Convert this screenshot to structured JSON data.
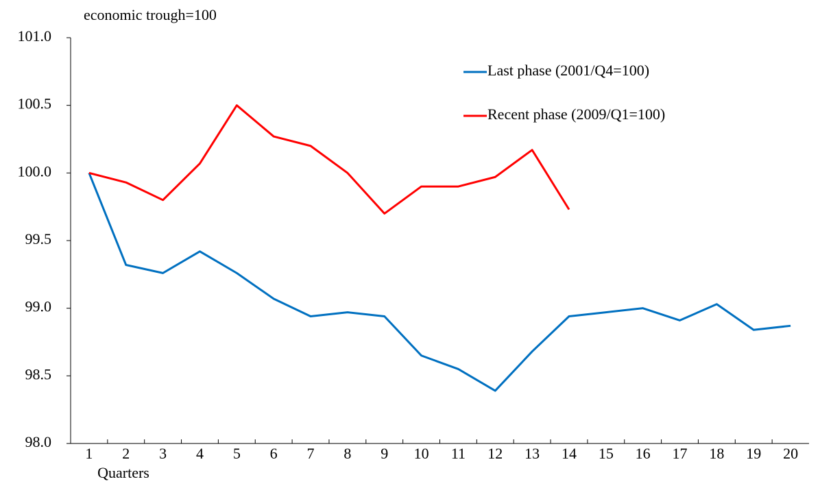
{
  "chart_data": {
    "type": "line",
    "subtitle": "economic trough=100",
    "x_label": "Quarters",
    "categories": [
      "1",
      "2",
      "3",
      "4",
      "5",
      "6",
      "7",
      "8",
      "9",
      "10",
      "11",
      "12",
      "13",
      "14",
      "15",
      "16",
      "17",
      "18",
      "19",
      "20"
    ],
    "series": [
      {
        "name": "Last phase (2001/Q4=100)",
        "color": "#0070c0",
        "values": [
          100.0,
          99.32,
          99.26,
          99.42,
          99.26,
          99.07,
          98.94,
          98.97,
          98.94,
          98.65,
          98.55,
          98.39,
          98.68,
          98.94,
          98.97,
          99.0,
          98.91,
          99.03,
          98.84,
          98.87
        ]
      },
      {
        "name": "Recent phase (2009/Q1=100)",
        "color": "#ff0000",
        "values": [
          100.0,
          99.93,
          99.8,
          100.07,
          100.5,
          100.27,
          100.2,
          100.0,
          99.7,
          99.9,
          99.9,
          99.97,
          100.17,
          99.73,
          null,
          null,
          null,
          null,
          null,
          null
        ]
      }
    ],
    "ylim": [
      98.0,
      101.0
    ],
    "yticks": [
      {
        "value": 98.0,
        "label": "98.0"
      },
      98.5,
      {
        "value": 99.0,
        "label": "99.0"
      },
      99.5,
      {
        "value": 100.0,
        "label": "100.0"
      },
      100.5,
      {
        "value": 101.0,
        "label": "101.0"
      }
    ],
    "grid": false,
    "legend": "upper right"
  }
}
